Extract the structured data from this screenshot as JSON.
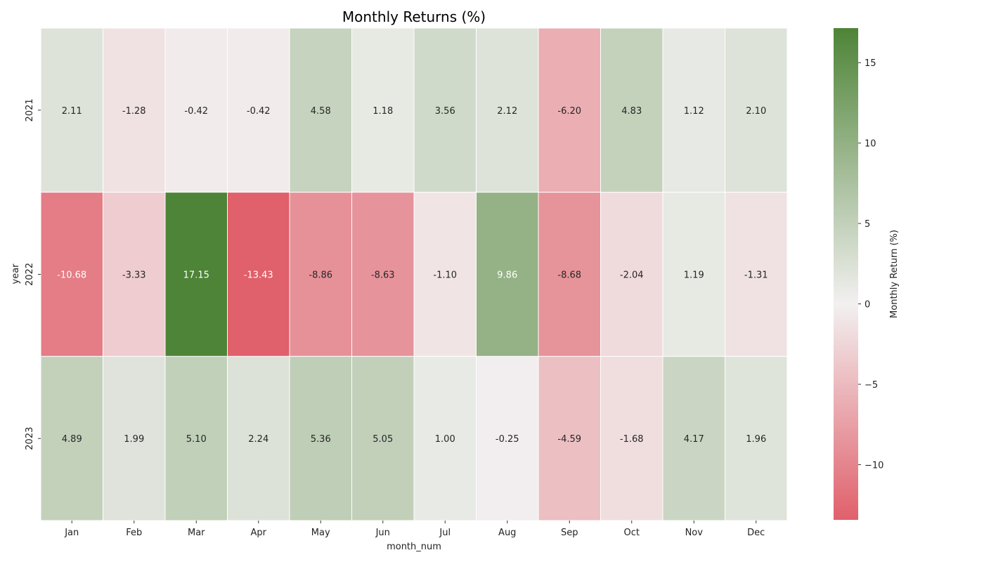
{
  "chart_data": {
    "type": "heatmap",
    "title": "Monthly Returns (%)",
    "xlabel": "month_num",
    "ylabel": "year",
    "x_categories": [
      "Jan",
      "Feb",
      "Mar",
      "Apr",
      "May",
      "Jun",
      "Jul",
      "Aug",
      "Sep",
      "Oct",
      "Nov",
      "Dec"
    ],
    "y_categories": [
      "2021",
      "2022",
      "2023"
    ],
    "values": [
      [
        2.11,
        -1.28,
        -0.42,
        -0.42,
        4.58,
        1.18,
        3.56,
        2.12,
        -6.2,
        4.83,
        1.12,
        2.1
      ],
      [
        -10.68,
        -3.33,
        17.15,
        -13.43,
        -8.86,
        -8.63,
        -1.1,
        9.86,
        -8.68,
        -2.04,
        1.19,
        -1.31
      ],
      [
        4.89,
        1.99,
        5.1,
        2.24,
        5.36,
        5.05,
        1.0,
        -0.25,
        -4.59,
        -1.68,
        4.17,
        1.96
      ]
    ],
    "value_labels": [
      [
        "2.11",
        "-1.28",
        "-0.42",
        "-0.42",
        "4.58",
        "1.18",
        "3.56",
        "2.12",
        "-6.20",
        "4.83",
        "1.12",
        "2.10"
      ],
      [
        "-10.68",
        "-3.33",
        "17.15",
        "-13.43",
        "-8.86",
        "-8.63",
        "-1.10",
        "9.86",
        "-8.68",
        "-2.04",
        "1.19",
        "-1.31"
      ],
      [
        "4.89",
        "1.99",
        "5.10",
        "2.24",
        "5.36",
        "5.05",
        "1.00",
        "-0.25",
        "-4.59",
        "-1.68",
        "4.17",
        "1.96"
      ]
    ],
    "colorbar": {
      "label": "Monthly Return (%)",
      "range": [
        -13.43,
        17.15
      ],
      "center": 0,
      "ticks": [
        -10,
        -5,
        0,
        5,
        10,
        15
      ],
      "tick_labels": [
        "−10",
        "−5",
        "0",
        "5",
        "10",
        "15"
      ]
    },
    "colors": {
      "negative_extreme": "#e0606b",
      "center": "#f2f0f0",
      "positive_extreme": "#4e8437"
    }
  }
}
